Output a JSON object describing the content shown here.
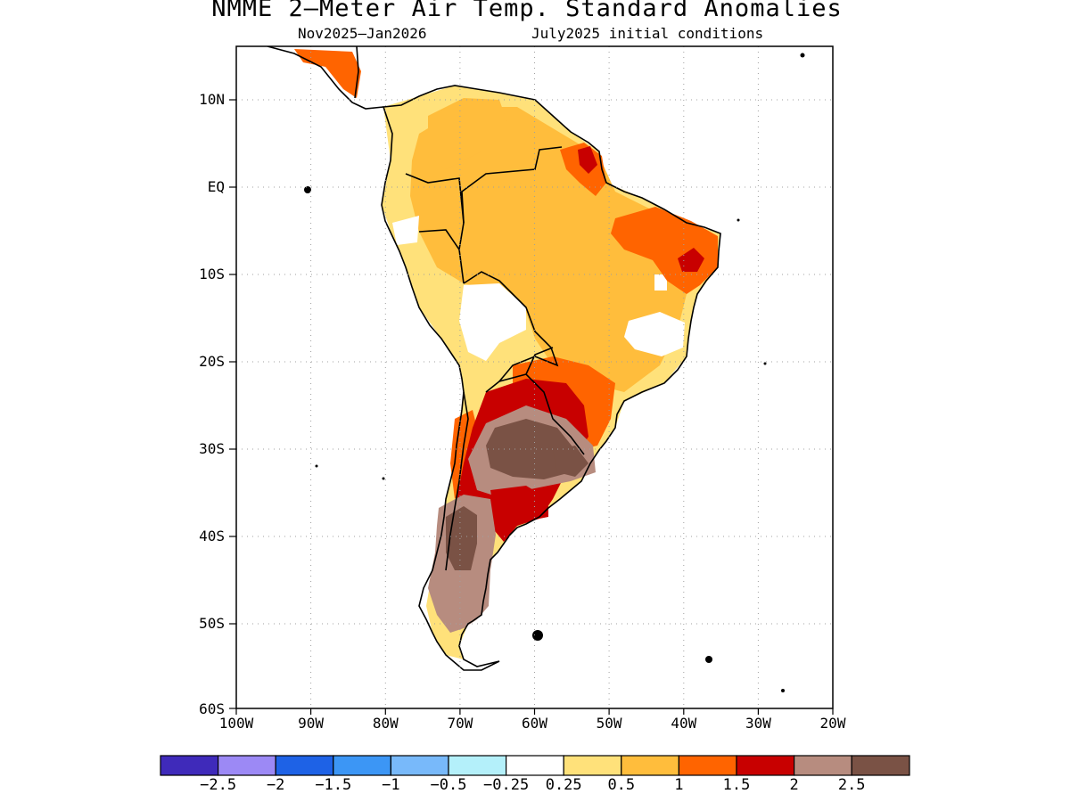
{
  "header": {
    "title": "NMME 2–Meter Air Temp. Standard Anomalies",
    "period": "Nov2025–Jan2026",
    "init": "July2025 initial conditions"
  },
  "axes": {
    "lat_labels": [
      "10N",
      "EQ",
      "10S",
      "20S",
      "30S",
      "40S",
      "50S",
      "60S"
    ],
    "lon_labels": [
      "100W",
      "90W",
      "80W",
      "70W",
      "60W",
      "50W",
      "40W",
      "30W",
      "20W"
    ]
  },
  "colorbar": {
    "colors": [
      "#3f2aba",
      "#9c89f5",
      "#1e62e6",
      "#3c96f5",
      "#78b9fa",
      "#b4f0fa",
      "#ffffff",
      "#ffe17a",
      "#ffbd3c",
      "#ff6400",
      "#c80000",
      "#b78c7f",
      "#7a5245"
    ],
    "labels": [
      "−2.5",
      "−2",
      "−1.5",
      "−1",
      "−0.5",
      "−0.25",
      "0.25",
      "0.5",
      "1",
      "1.5",
      "2",
      "2.5"
    ]
  },
  "map_data": {
    "region": "South America",
    "lon_range": [
      -100,
      -20
    ],
    "lat_range": [
      -60,
      15
    ],
    "variable": "2-meter air temperature standard anomaly",
    "regions": [
      {
        "area": "Central America / southern Mexico",
        "category": "1.5"
      },
      {
        "area": "Colombia / Venezuela / Guianas",
        "category": "0.5"
      },
      {
        "area": "Amazon basin",
        "category": "1"
      },
      {
        "area": "northeastern Brazil",
        "category": "1.5"
      },
      {
        "area": "Ceara interior hotspot",
        "category": "2"
      },
      {
        "area": "Amapa / Para coast",
        "category": "2"
      },
      {
        "area": "eastern Brazil highlands",
        "category": "0.25"
      },
      {
        "area": "Bolivian altiplano",
        "category": "0.25"
      },
      {
        "area": "Paraguay / southern Brazil",
        "category": "1.5"
      },
      {
        "area": "northern Argentina / Paraguay",
        "category": "2"
      },
      {
        "area": "central Argentina / Uruguay",
        "category": "2.5"
      },
      {
        "area": "Patagonia",
        "category": "2.5"
      },
      {
        "area": "Buenos Aires / La Pampa",
        "category": "2"
      }
    ]
  }
}
